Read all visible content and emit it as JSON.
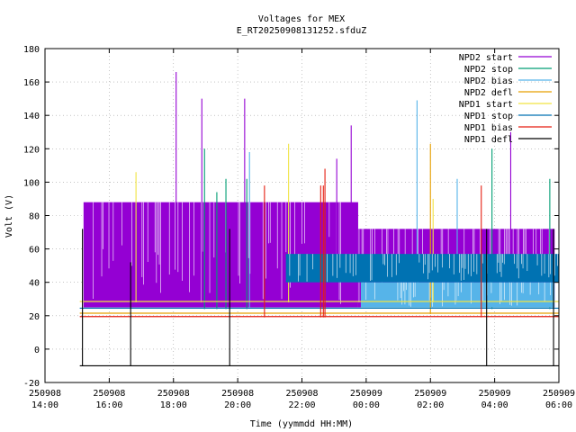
{
  "chart_data": {
    "type": "line",
    "title": "Voltages for MEX",
    "subtitle": "E_RT20250908131252.sfduZ",
    "xlabel": "Time (yymmdd HH:MM)",
    "ylabel": "Volt (V)",
    "xlim": [
      "2025-09-08 14:00",
      "2025-09-09 06:00"
    ],
    "ylim": [
      -20,
      180
    ],
    "grid": true,
    "legend_position": "top-right",
    "y_ticks": [
      -20,
      0,
      20,
      40,
      60,
      80,
      100,
      120,
      140,
      160,
      180
    ],
    "x_ticks": [
      {
        "t": "2025-09-08 14:00",
        "date": "250908",
        "time": "14:00"
      },
      {
        "t": "2025-09-08 16:00",
        "date": "250908",
        "time": "16:00"
      },
      {
        "t": "2025-09-08 18:00",
        "date": "250908",
        "time": "18:00"
      },
      {
        "t": "2025-09-08 20:00",
        "date": "250908",
        "time": "20:00"
      },
      {
        "t": "2025-09-08 22:00",
        "date": "250908",
        "time": "22:00"
      },
      {
        "t": "2025-09-09 00:00",
        "date": "250909",
        "time": "00:00"
      },
      {
        "t": "2025-09-09 02:00",
        "date": "250909",
        "time": "02:00"
      },
      {
        "t": "2025-09-09 04:00",
        "date": "250909",
        "time": "04:00"
      },
      {
        "t": "2025-09-09 06:00",
        "date": "250909",
        "time": "06:00"
      }
    ],
    "series": [
      {
        "name": "NPD2 start",
        "color": "#9400d3",
        "segments": [
          {
            "from": "2025-09-08 15:12",
            "to": "2025-09-08 23:45",
            "low": 25,
            "high": 88
          },
          {
            "from": "2025-09-08 23:45",
            "to": "2025-09-09 05:52",
            "low": 25,
            "high": 72
          }
        ],
        "spikes": [
          {
            "t": "2025-09-08 18:05",
            "v": 166
          },
          {
            "t": "2025-09-08 18:53",
            "v": 150
          },
          {
            "t": "2025-09-08 20:13",
            "v": 150
          },
          {
            "t": "2025-09-08 23:05",
            "v": 114
          },
          {
            "t": "2025-09-08 23:32",
            "v": 134
          },
          {
            "t": "2025-09-09 04:30",
            "v": 130
          }
        ]
      },
      {
        "name": "NPD2 stop",
        "color": "#009e73",
        "segments": [
          {
            "from": "2025-09-08 15:12",
            "to": "2025-09-09 05:52",
            "low": 24,
            "high": 25
          }
        ],
        "spikes": [
          {
            "t": "2025-09-08 18:58",
            "v": 120
          },
          {
            "t": "2025-09-08 19:21",
            "v": 94
          },
          {
            "t": "2025-09-08 19:38",
            "v": 102
          },
          {
            "t": "2025-09-08 20:17",
            "v": 102
          },
          {
            "t": "2025-09-09 03:55",
            "v": 120
          },
          {
            "t": "2025-09-09 05:43",
            "v": 102
          }
        ]
      },
      {
        "name": "NPD2 bias",
        "color": "#56b4e9",
        "segments": [
          {
            "from": "2025-09-08 23:50",
            "to": "2025-09-09 05:52",
            "low": 25,
            "high": 40
          }
        ],
        "spikes": [
          {
            "t": "2025-09-08 20:22",
            "v": 118
          },
          {
            "t": "2025-09-09 01:35",
            "v": 149
          },
          {
            "t": "2025-09-09 02:50",
            "v": 102
          },
          {
            "t": "2025-09-09 05:13",
            "v": 38
          }
        ]
      },
      {
        "name": "NPD2 defl",
        "color": "#e69f00",
        "segments": [
          {
            "from": "2025-09-08 15:05",
            "to": "2025-09-09 06:00",
            "low": 21,
            "high": 22
          }
        ],
        "spikes": [
          {
            "t": "2025-09-09 02:00",
            "v": 123
          }
        ]
      },
      {
        "name": "NPD1 start",
        "color": "#f0e442",
        "segments": [
          {
            "from": "2025-09-08 15:05",
            "to": "2025-09-09 06:00",
            "low": 28,
            "high": 29
          }
        ],
        "spikes": [
          {
            "t": "2025-09-08 16:50",
            "v": 106
          },
          {
            "t": "2025-09-08 21:35",
            "v": 123
          },
          {
            "t": "2025-09-09 02:05",
            "v": 90
          }
        ]
      },
      {
        "name": "NPD1 stop",
        "color": "#0072b2",
        "segments": [
          {
            "from": "2025-09-08 21:30",
            "to": "2025-09-09 06:00",
            "low": 40,
            "high": 57
          },
          {
            "from": "2025-09-08 15:05",
            "to": "2025-09-09 06:00",
            "low": 24,
            "high": 25
          }
        ],
        "spikes": []
      },
      {
        "name": "NPD1 bias",
        "color": "#e51e10",
        "segments": [
          {
            "from": "2025-09-08 15:05",
            "to": "2025-09-09 06:00",
            "low": 19,
            "high": 20
          }
        ],
        "spikes": [
          {
            "t": "2025-09-08 20:50",
            "v": 98
          },
          {
            "t": "2025-09-08 22:35",
            "v": 98
          },
          {
            "t": "2025-09-08 22:40",
            "v": 98
          },
          {
            "t": "2025-09-08 22:43",
            "v": 108
          },
          {
            "t": "2025-09-09 03:35",
            "v": 98
          }
        ]
      },
      {
        "name": "NPD1 defl",
        "color": "#000000",
        "segments": [
          {
            "from": "2025-09-08 15:05",
            "to": "2025-09-09 06:00",
            "low": -10,
            "high": -10
          }
        ],
        "spikes": [
          {
            "t": "2025-09-08 15:10",
            "v": 72
          },
          {
            "t": "2025-09-08 16:40",
            "v": 52
          },
          {
            "t": "2025-09-08 19:45",
            "v": 72
          },
          {
            "t": "2025-09-09 03:45",
            "v": 72
          },
          {
            "t": "2025-09-09 05:50",
            "v": 72
          }
        ]
      }
    ]
  }
}
